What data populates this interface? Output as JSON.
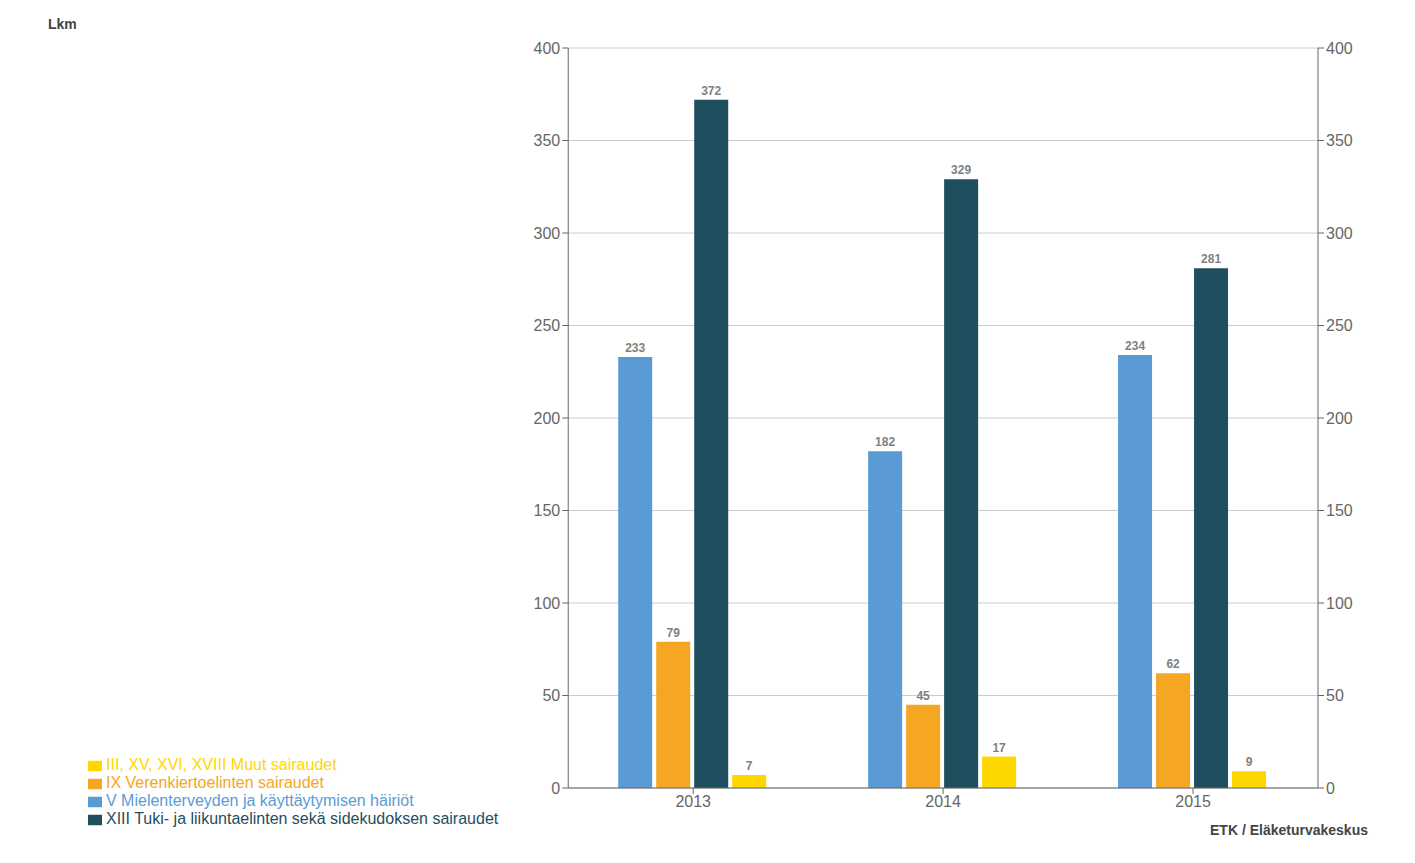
{
  "chart_data": {
    "type": "bar",
    "categories": [
      "2013",
      "2014",
      "2015"
    ],
    "series": [
      {
        "name": "V Mielenterveyden ja käyttäytymisen häiriöt",
        "color": "#5B9BD5",
        "values": [
          233,
          182,
          234
        ]
      },
      {
        "name": "IX Verenkiertoelinten sairaudet",
        "color": "#F5A623",
        "values": [
          79,
          45,
          62
        ]
      },
      {
        "name": "XIII Tuki- ja liikuntaelinten sekä sidekudoksen sairaudet",
        "color": "#1F4E5F",
        "values": [
          372,
          329,
          281
        ]
      },
      {
        "name": "III, XV, XVI, XVIII Muut sairaudet",
        "color": "#FFD700",
        "values": [
          7,
          17,
          9
        ]
      }
    ],
    "ylabel": "Lkm",
    "ylim": [
      0,
      400
    ],
    "yticks": [
      0,
      50,
      100,
      150,
      200,
      250,
      300,
      350,
      400
    ],
    "y2lim": [
      0,
      400
    ],
    "y2ticks": [
      0,
      50,
      100,
      150,
      200,
      250,
      300,
      350,
      400
    ],
    "grid": true,
    "data_labels": true,
    "legend": "bottom",
    "annotations": [
      "ETK / Eläketurvakeskus"
    ]
  }
}
